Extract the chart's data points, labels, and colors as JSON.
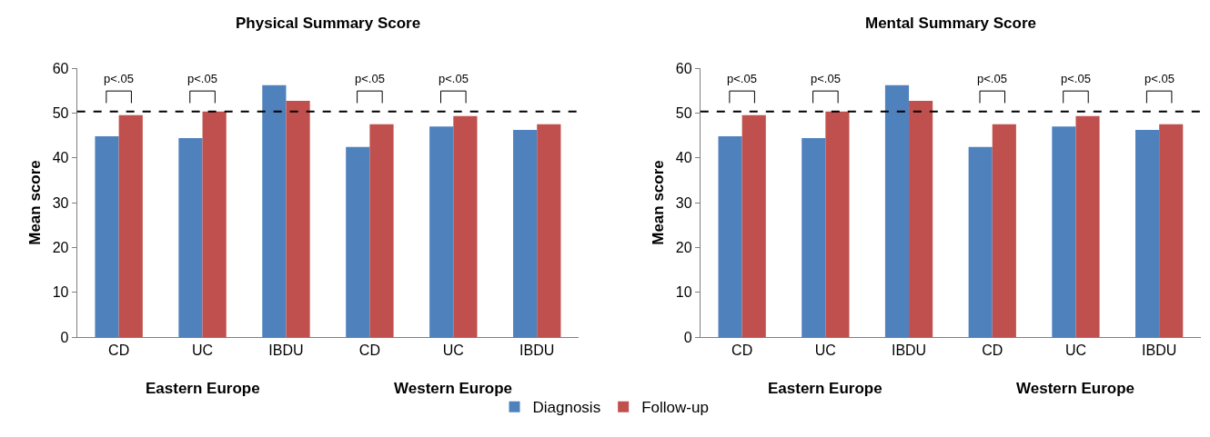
{
  "chart_data": [
    {
      "type": "bar",
      "title": "Physical Summary Score",
      "ylabel": "Mean score",
      "categories": [
        "CD",
        "UC",
        "IBDU",
        "CD",
        "UC",
        "IBDU"
      ],
      "series": [
        {
          "name": "Diagnosis",
          "color": "#4f81bd",
          "values": [
            44.8,
            44.4,
            56.2,
            42.4,
            47.0,
            46.2
          ]
        },
        {
          "name": "Follow-up",
          "color": "#c0504d",
          "values": [
            49.5,
            50.3,
            52.7,
            47.5,
            49.3,
            47.5
          ]
        }
      ],
      "ylim": [
        0,
        60
      ],
      "yticks": [
        0,
        10,
        20,
        30,
        40,
        50,
        60
      ],
      "legend": "bottom",
      "ref_lines": [
        {
          "axis": "y",
          "value": 50.3,
          "color": "#000000",
          "line_style": "dashed"
        }
      ],
      "annotations": [
        "p<.05",
        "p<.05",
        "p<.05",
        "p<.05",
        "Eastern Europe",
        "Western Europe"
      ]
    },
    {
      "type": "bar",
      "title": "Mental Summary Score",
      "ylabel": "Mean score",
      "categories": [
        "CD",
        "UC",
        "IBDU",
        "CD",
        "UC",
        "IBDU"
      ],
      "series": [
        {
          "name": "Diagnosis",
          "color": "#4f81bd",
          "values": [
            44.8,
            44.4,
            56.2,
            42.4,
            47.0,
            46.2
          ]
        },
        {
          "name": "Follow-up",
          "color": "#c0504d",
          "values": [
            49.5,
            50.3,
            52.7,
            47.5,
            49.3,
            47.5
          ]
        }
      ],
      "ylim": [
        0,
        60
      ],
      "yticks": [
        0,
        10,
        20,
        30,
        40,
        50,
        60
      ],
      "legend": "bottom",
      "ref_lines": [
        {
          "axis": "y",
          "value": 50.3,
          "color": "#000000",
          "line_style": "dashed"
        }
      ],
      "annotations": [
        "p<.05",
        "p<.05",
        "p<.05",
        "p<.05",
        "p<.05",
        "Eastern Europe",
        "Western Europe"
      ]
    }
  ]
}
